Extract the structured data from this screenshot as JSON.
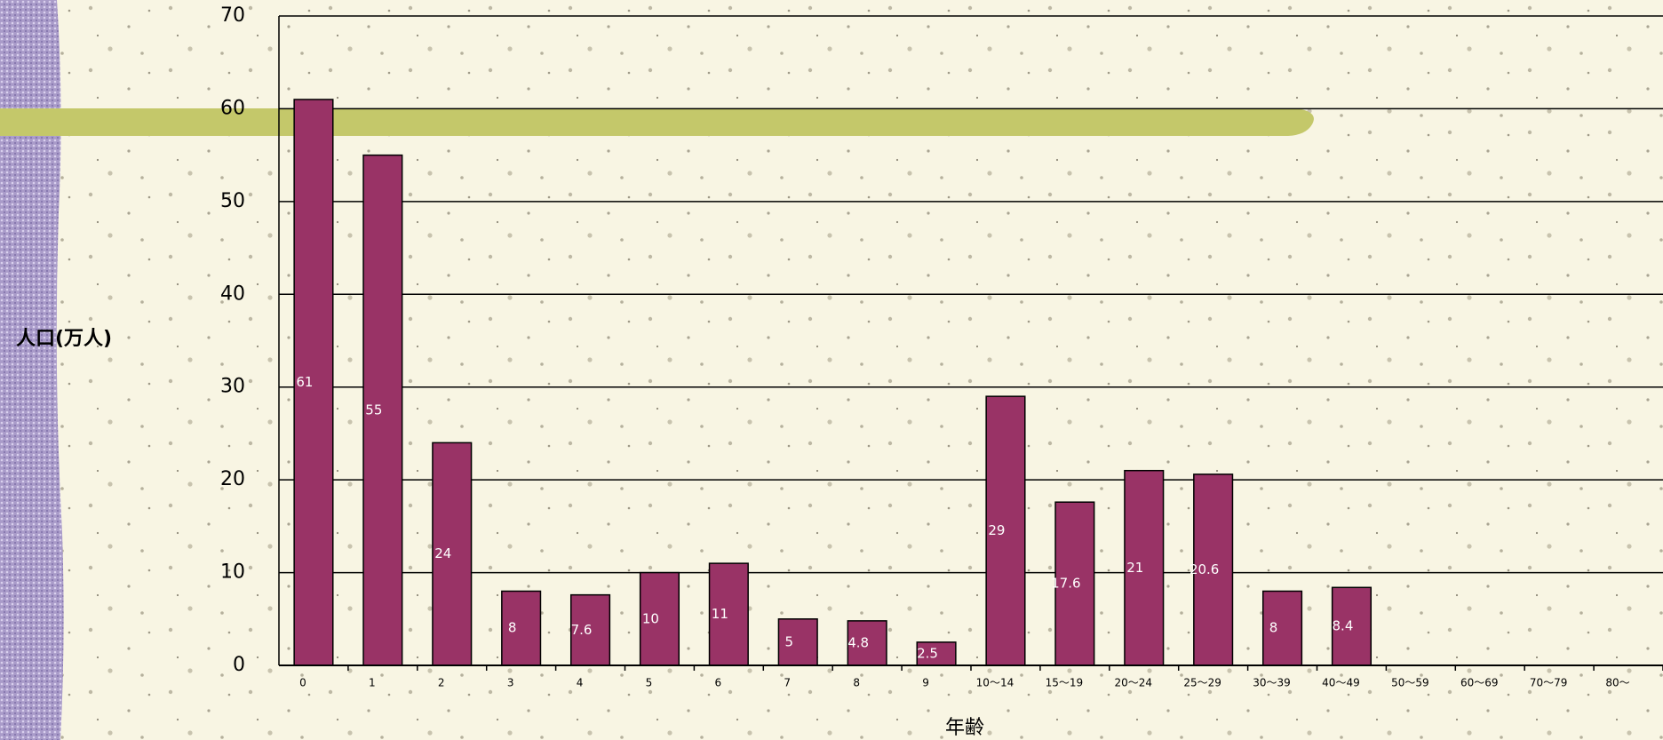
{
  "chart_data": {
    "type": "bar",
    "y_label": "人口(万人)",
    "x_label": "年齢",
    "categories": [
      "0",
      "1",
      "2",
      "3",
      "4",
      "5",
      "6",
      "7",
      "8",
      "9",
      "10～14",
      "15～19",
      "20～24",
      "25～29",
      "30～39",
      "40～49",
      "50～59",
      "60～69",
      "70～79",
      "80～"
    ],
    "values": [
      61,
      55,
      24,
      8,
      7.6,
      10,
      11,
      5,
      4.8,
      2.5,
      29,
      17.6,
      21,
      20.6,
      8,
      8.4,
      null,
      null,
      null,
      null
    ],
    "color": "#993366",
    "ylim": [
      0,
      70
    ],
    "yticks": [
      0,
      10,
      20,
      30,
      40,
      50,
      60,
      70
    ],
    "grid": true
  }
}
